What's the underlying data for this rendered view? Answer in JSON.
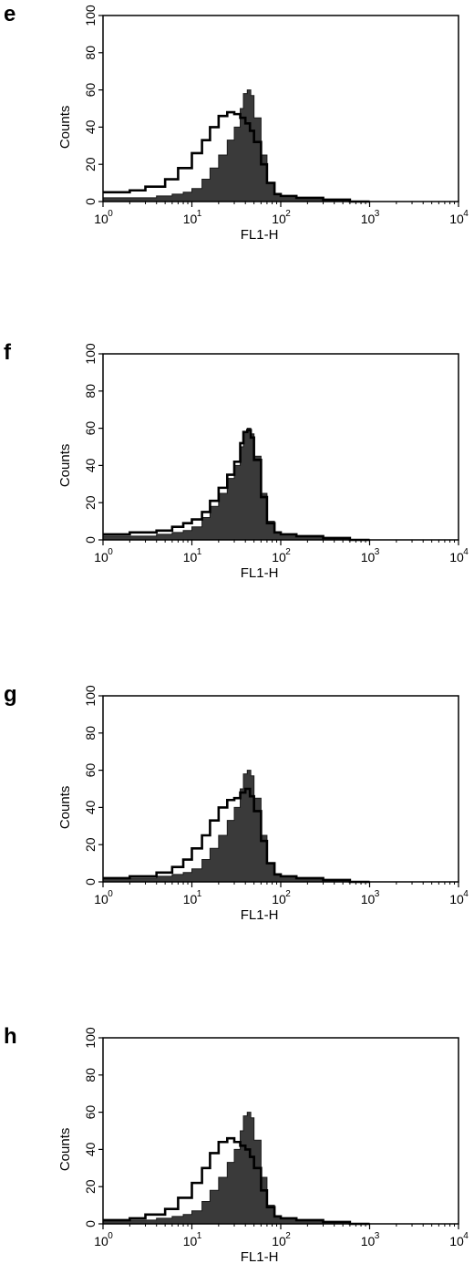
{
  "chart_data": [
    {
      "type": "area",
      "panel": "e",
      "xlabel": "FL1-H",
      "ylabel": "Counts",
      "x_scale": "log",
      "xlim": [
        1,
        10000
      ],
      "ylim": [
        0,
        100
      ],
      "x_tick_labels": [
        {
          "base": "10",
          "exp": "0"
        },
        {
          "base": "10",
          "exp": "1"
        },
        {
          "base": "10",
          "exp": "2"
        },
        {
          "base": "10",
          "exp": "3"
        },
        {
          "base": "10",
          "exp": "4"
        }
      ],
      "y_tick_labels": [
        "0",
        "20",
        "40",
        "60",
        "80",
        "100"
      ],
      "grid": false,
      "series": [
        {
          "style": "filled",
          "x": [
            1,
            2,
            4,
            6,
            8,
            10,
            13,
            16,
            20,
            25,
            30,
            35,
            38,
            42,
            46,
            50,
            60,
            70,
            85,
            100,
            150,
            300,
            600,
            1000
          ],
          "y": [
            2,
            2,
            3,
            4,
            5,
            7,
            12,
            18,
            25,
            33,
            40,
            50,
            58,
            60,
            57,
            45,
            25,
            10,
            4,
            3,
            2,
            1,
            0,
            0
          ]
        },
        {
          "style": "outline",
          "x": [
            1,
            2,
            3,
            5,
            7,
            10,
            13,
            16,
            20,
            25,
            30,
            35,
            40,
            45,
            50,
            60,
            70,
            85,
            100,
            150,
            300,
            600,
            1000
          ],
          "y": [
            5,
            6,
            8,
            12,
            18,
            26,
            33,
            40,
            46,
            48,
            47,
            45,
            42,
            38,
            32,
            20,
            10,
            4,
            3,
            2,
            1,
            0,
            0
          ]
        }
      ]
    },
    {
      "type": "area",
      "panel": "f",
      "xlabel": "FL1-H",
      "ylabel": "Counts",
      "x_scale": "log",
      "xlim": [
        1,
        10000
      ],
      "ylim": [
        0,
        100
      ],
      "x_tick_labels": [
        {
          "base": "10",
          "exp": "0"
        },
        {
          "base": "10",
          "exp": "1"
        },
        {
          "base": "10",
          "exp": "2"
        },
        {
          "base": "10",
          "exp": "3"
        },
        {
          "base": "10",
          "exp": "4"
        }
      ],
      "y_tick_labels": [
        "0",
        "20",
        "40",
        "60",
        "80",
        "100"
      ],
      "grid": false,
      "series": [
        {
          "style": "filled",
          "x": [
            1,
            2,
            4,
            6,
            8,
            10,
            13,
            16,
            20,
            25,
            30,
            35,
            38,
            42,
            46,
            50,
            60,
            70,
            85,
            100,
            150,
            300,
            600,
            1000
          ],
          "y": [
            2,
            2,
            3,
            4,
            5,
            7,
            12,
            18,
            25,
            33,
            40,
            50,
            58,
            60,
            57,
            45,
            25,
            10,
            4,
            3,
            2,
            1,
            0,
            0
          ]
        },
        {
          "style": "outline",
          "x": [
            1,
            2,
            4,
            6,
            8,
            10,
            13,
            16,
            20,
            25,
            30,
            35,
            38,
            42,
            46,
            50,
            60,
            70,
            85,
            100,
            150,
            300,
            600,
            1000
          ],
          "y": [
            3,
            4,
            5,
            7,
            9,
            11,
            15,
            21,
            28,
            35,
            42,
            52,
            58,
            59,
            55,
            43,
            23,
            9,
            4,
            3,
            2,
            1,
            0,
            0
          ]
        }
      ]
    },
    {
      "type": "area",
      "panel": "g",
      "xlabel": "FL1-H",
      "ylabel": "Counts",
      "x_scale": "log",
      "xlim": [
        1,
        10000
      ],
      "ylim": [
        0,
        100
      ],
      "x_tick_labels": [
        {
          "base": "10",
          "exp": "0"
        },
        {
          "base": "10",
          "exp": "1"
        },
        {
          "base": "10",
          "exp": "2"
        },
        {
          "base": "10",
          "exp": "3"
        },
        {
          "base": "10",
          "exp": "4"
        }
      ],
      "y_tick_labels": [
        "0",
        "20",
        "40",
        "60",
        "80",
        "100"
      ],
      "grid": false,
      "series": [
        {
          "style": "filled",
          "x": [
            1,
            2,
            4,
            6,
            8,
            10,
            13,
            16,
            20,
            25,
            30,
            35,
            38,
            42,
            46,
            50,
            60,
            70,
            85,
            100,
            150,
            300,
            600,
            1000
          ],
          "y": [
            2,
            2,
            3,
            4,
            5,
            7,
            12,
            18,
            25,
            33,
            40,
            50,
            58,
            60,
            57,
            45,
            25,
            10,
            4,
            3,
            2,
            1,
            0,
            0
          ]
        },
        {
          "style": "outline",
          "x": [
            1,
            2,
            4,
            6,
            8,
            10,
            13,
            16,
            20,
            25,
            30,
            35,
            40,
            45,
            50,
            60,
            70,
            85,
            100,
            150,
            300,
            600,
            1000
          ],
          "y": [
            2,
            3,
            5,
            8,
            12,
            18,
            25,
            33,
            40,
            44,
            45,
            48,
            50,
            46,
            38,
            22,
            10,
            4,
            3,
            2,
            1,
            0,
            0
          ]
        }
      ]
    },
    {
      "type": "area",
      "panel": "h",
      "xlabel": "FL1-H",
      "ylabel": "Counts",
      "x_scale": "log",
      "xlim": [
        1,
        10000
      ],
      "ylim": [
        0,
        100
      ],
      "x_tick_labels": [
        {
          "base": "10",
          "exp": "0"
        },
        {
          "base": "10",
          "exp": "1"
        },
        {
          "base": "10",
          "exp": "2"
        },
        {
          "base": "10",
          "exp": "3"
        },
        {
          "base": "10",
          "exp": "4"
        }
      ],
      "y_tick_labels": [
        "0",
        "20",
        "40",
        "60",
        "80",
        "100"
      ],
      "grid": false,
      "series": [
        {
          "style": "filled",
          "x": [
            1,
            2,
            4,
            6,
            8,
            10,
            13,
            16,
            20,
            25,
            30,
            35,
            38,
            42,
            46,
            50,
            60,
            70,
            85,
            100,
            150,
            300,
            600,
            1000
          ],
          "y": [
            2,
            2,
            3,
            4,
            5,
            7,
            12,
            18,
            25,
            33,
            40,
            50,
            58,
            60,
            57,
            45,
            25,
            10,
            4,
            3,
            2,
            1,
            0,
            0
          ]
        },
        {
          "style": "outline",
          "x": [
            1,
            2,
            3,
            5,
            7,
            10,
            13,
            16,
            20,
            25,
            30,
            35,
            40,
            45,
            50,
            60,
            70,
            85,
            100,
            150,
            300,
            600,
            1000
          ],
          "y": [
            2,
            3,
            5,
            8,
            14,
            22,
            30,
            38,
            44,
            46,
            44,
            42,
            40,
            36,
            30,
            18,
            9,
            4,
            3,
            2,
            1,
            0,
            0
          ]
        }
      ]
    }
  ],
  "colors": {
    "fill": "#3a3a3a",
    "outline": "#000000",
    "axes": "#000000",
    "background": "#ffffff"
  }
}
